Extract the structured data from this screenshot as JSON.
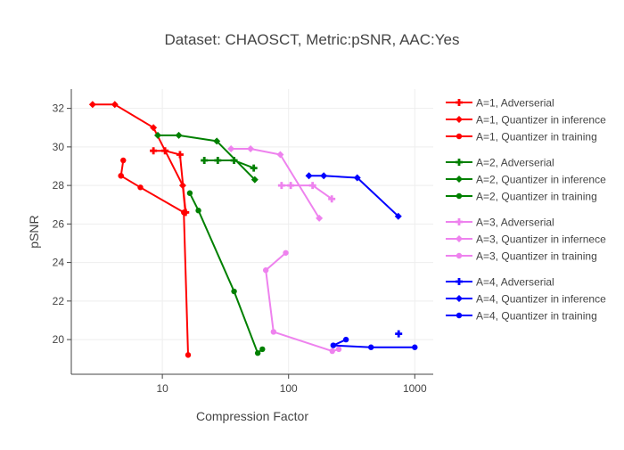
{
  "chart_data": {
    "type": "line",
    "title": "Dataset: CHAOSCT, Metric:pSNR, AAC:Yes",
    "xlabel": "Compression Factor",
    "ylabel": "pSNR",
    "xscale": "log",
    "xlim": [
      1.9,
      1400
    ],
    "ylim": [
      18.2,
      33.0
    ],
    "x_ticks": [
      10,
      100,
      1000
    ],
    "y_ticks": [
      20,
      22,
      24,
      26,
      28,
      30,
      32
    ],
    "grid": true,
    "legend_position": "right",
    "series": [
      {
        "name": "A=1, Adverserial",
        "color": "#ff0000",
        "marker": "cross",
        "group": 1,
        "x": [
          8.5,
          10.5,
          13.8,
          15.3
        ],
        "y": [
          29.8,
          29.8,
          29.6,
          26.6
        ]
      },
      {
        "name": "A=1, Quantizer in inference",
        "color": "#ff0000",
        "marker": "diamond",
        "group": 1,
        "x": [
          2.8,
          4.2,
          8.5,
          14.5,
          15.2
        ],
        "y": [
          32.2,
          32.2,
          31.0,
          28.0,
          26.6
        ]
      },
      {
        "name": "A=1, Quantizer in training",
        "color": "#ff0000",
        "marker": "circle",
        "group": 1,
        "x": [
          4.7,
          4.9,
          4.7,
          6.7,
          14.8,
          16.0
        ],
        "y": [
          28.5,
          29.3,
          28.5,
          27.9,
          26.6,
          19.2
        ]
      },
      {
        "name": "A=2, Adverserial",
        "color": "#008000",
        "marker": "cross",
        "group": 2,
        "x": [
          21.5,
          27.5,
          37.0,
          53.0
        ],
        "y": [
          29.3,
          29.3,
          29.3,
          28.9
        ]
      },
      {
        "name": "A=2, Quantizer in inference",
        "color": "#008000",
        "marker": "diamond",
        "group": 2,
        "x": [
          9.2,
          13.5,
          27.0,
          54.0
        ],
        "y": [
          30.6,
          30.6,
          30.3,
          28.3
        ]
      },
      {
        "name": "A=2, Quantizer in training",
        "color": "#008000",
        "marker": "circle",
        "group": 2,
        "x": [
          16.5,
          19.3,
          37.0,
          57.0,
          62.0
        ],
        "y": [
          27.6,
          26.7,
          22.5,
          19.3,
          19.5
        ]
      },
      {
        "name": "A=3, Adverserial",
        "color": "#ee82ee",
        "marker": "cross",
        "group": 3,
        "x": [
          88.0,
          104.0,
          155.0,
          220.0
        ],
        "y": [
          28.0,
          28.0,
          28.0,
          27.3
        ]
      },
      {
        "name": "A=3, Quantizer in infernece",
        "color": "#ee82ee",
        "marker": "diamond",
        "group": 3,
        "x": [
          35.0,
          50.0,
          86.0,
          175.0
        ],
        "y": [
          29.9,
          29.9,
          29.6,
          26.3
        ]
      },
      {
        "name": "A=3, Quantizer in training",
        "color": "#ee82ee",
        "marker": "circle",
        "group": 3,
        "x": [
          95.0,
          66.0,
          76.0,
          222.0,
          250.0
        ],
        "y": [
          24.5,
          23.6,
          20.4,
          19.4,
          19.5
        ]
      },
      {
        "name": "A=4, Adverserial",
        "color": "#0000ff",
        "marker": "cross",
        "group": 4,
        "x": [
          745.0
        ],
        "y": [
          20.3
        ]
      },
      {
        "name": "A=4, Quantizer in inference",
        "color": "#0000ff",
        "marker": "diamond",
        "group": 4,
        "x": [
          145.0,
          190.0,
          350.0,
          740.0
        ],
        "y": [
          28.5,
          28.5,
          28.4,
          26.4
        ]
      },
      {
        "name": "A=4, Quantizer in training",
        "color": "#0000ff",
        "marker": "circle",
        "group": 4,
        "x": [
          285.0,
          226.0,
          450.0,
          1000.0
        ],
        "y": [
          20.0,
          19.7,
          19.6,
          19.6
        ]
      }
    ]
  }
}
